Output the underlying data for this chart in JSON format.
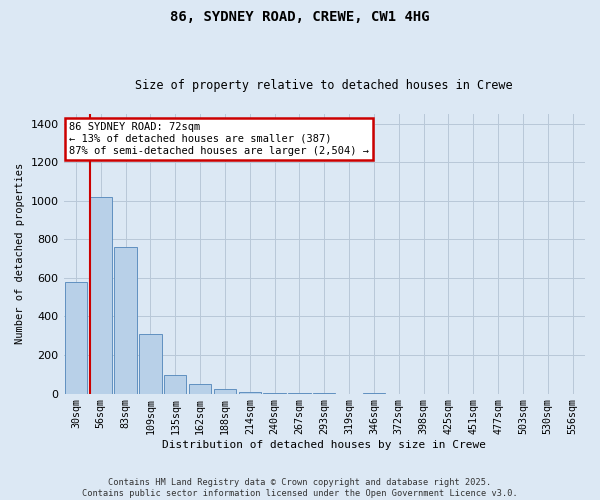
{
  "title": "86, SYDNEY ROAD, CREWE, CW1 4HG",
  "subtitle": "Size of property relative to detached houses in Crewe",
  "xlabel": "Distribution of detached houses by size in Crewe",
  "ylabel": "Number of detached properties",
  "bar_labels": [
    "30sqm",
    "56sqm",
    "83sqm",
    "109sqm",
    "135sqm",
    "162sqm",
    "188sqm",
    "214sqm",
    "240sqm",
    "267sqm",
    "293sqm",
    "319sqm",
    "346sqm",
    "372sqm",
    "398sqm",
    "425sqm",
    "451sqm",
    "477sqm",
    "503sqm",
    "530sqm",
    "556sqm"
  ],
  "bar_values": [
    580,
    1020,
    760,
    310,
    95,
    50,
    25,
    10,
    4,
    3,
    1,
    0,
    1,
    0,
    0,
    0,
    0,
    0,
    0,
    0,
    0
  ],
  "bar_color": "#b8d0e8",
  "bar_edge_color": "#6090c0",
  "ylim": [
    0,
    1450
  ],
  "yticks": [
    0,
    200,
    400,
    600,
    800,
    1000,
    1200,
    1400
  ],
  "red_line_x": 0.58,
  "annotation_text": "86 SYDNEY ROAD: 72sqm\n← 13% of detached houses are smaller (387)\n87% of semi-detached houses are larger (2,504) →",
  "annotation_box_color": "#ffffff",
  "annotation_box_edge": "#cc0000",
  "footer_line1": "Contains HM Land Registry data © Crown copyright and database right 2025.",
  "footer_line2": "Contains public sector information licensed under the Open Government Licence v3.0.",
  "background_color": "#dce8f4",
  "plot_bg_color": "#dce8f4",
  "grid_color": "#b8c8d8"
}
